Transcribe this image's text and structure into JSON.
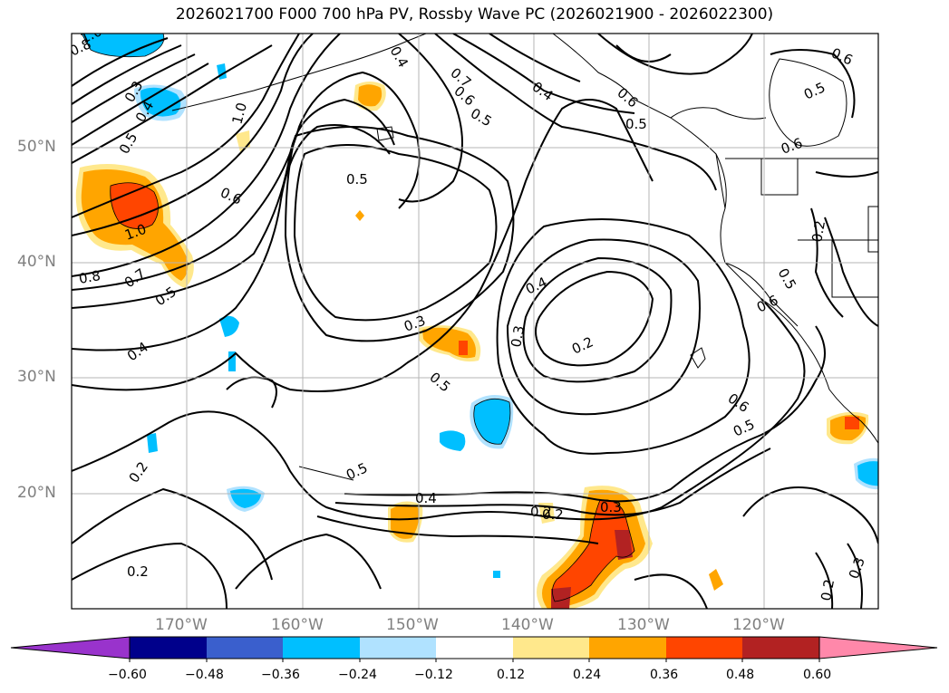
{
  "title": "2026021700 F000 700 hPa PV, Rossby Wave PC (2026021900 - 2026022300)",
  "latitude_labels": [
    "50°N",
    "40°N",
    "30°N",
    "20°N"
  ],
  "longitude_labels": [
    "170°W",
    "160°W",
    "150°W",
    "140°W",
    "130°W",
    "120°W"
  ],
  "colorbar": {
    "ticks": [
      "−0.60",
      "−0.48",
      "−0.36",
      "−0.24",
      "−0.12",
      "0.12",
      "0.24",
      "0.36",
      "0.48",
      "0.60"
    ],
    "colors": [
      "#9933cc",
      "#00008b",
      "#3a5fcd",
      "#00bfff",
      "#b0e2ff",
      "#ffffff",
      "#ffe88c",
      "#ffa500",
      "#ff4500",
      "#b22222",
      "#ff88aa"
    ]
  },
  "contour_labels": [
    "1.0",
    "0.8",
    "0.3",
    "0.4",
    "0.5",
    "1.0",
    "0.6",
    "1.0",
    "0.8",
    "0.7",
    "0.5",
    "0.4",
    "0.2",
    "0.2",
    "0.4",
    "0.7",
    "0.6",
    "0.5",
    "0.4",
    "0.5",
    "0.4",
    "0.3",
    "0.2",
    "0.3",
    "0.5",
    "0.5",
    "0.4",
    "0.2",
    "0.3",
    "0.6",
    "0.5",
    "0.6",
    "0.5",
    "0.6",
    "0.2",
    "0.5",
    "0.6",
    "0.6",
    "0.5",
    "0.2",
    "0.3",
    "0.2"
  ],
  "colors": {
    "positive_light": "#ffe88c",
    "positive_mid": "#ffa500",
    "positive_strong": "#ff4500",
    "positive_max": "#b22222",
    "negative_light": "#b0e2ff",
    "negative_mid": "#00bfff",
    "negative_strong": "#3a5fcd"
  }
}
